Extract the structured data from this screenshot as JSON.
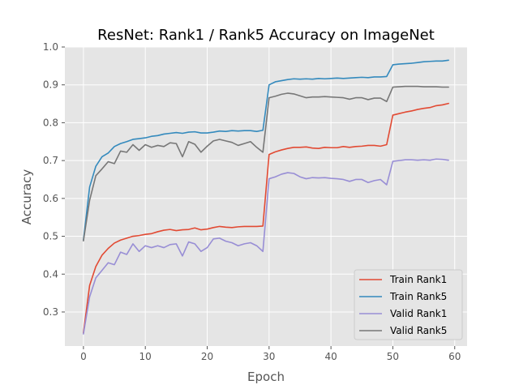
{
  "chart_data": {
    "type": "line",
    "title": "ResNet: Rank1 / Rank5 Accuracy on ImageNet",
    "xlabel": "Epoch",
    "ylabel": "Accuracy",
    "xlim": [
      -3,
      62
    ],
    "ylim": [
      0.21,
      1.0
    ],
    "xticks": [
      0,
      10,
      20,
      30,
      40,
      50,
      60
    ],
    "yticks": [
      0.3,
      0.4,
      0.5,
      0.6,
      0.7,
      0.8,
      0.9,
      1.0
    ],
    "xtick_labels": [
      "0",
      "10",
      "20",
      "30",
      "40",
      "50",
      "60"
    ],
    "ytick_labels": [
      "0.3",
      "0.4",
      "0.5",
      "0.6",
      "0.7",
      "0.8",
      "0.9",
      "1.0"
    ],
    "grid": true,
    "legend_position": "lower-right",
    "x": [
      0,
      1,
      2,
      3,
      4,
      5,
      6,
      7,
      8,
      9,
      10,
      11,
      12,
      13,
      14,
      15,
      16,
      17,
      18,
      19,
      20,
      21,
      22,
      23,
      24,
      25,
      26,
      27,
      28,
      29,
      30,
      31,
      32,
      33,
      34,
      35,
      36,
      37,
      38,
      39,
      40,
      41,
      42,
      43,
      44,
      45,
      46,
      47,
      48,
      49,
      50,
      51,
      52,
      53,
      54,
      55,
      56,
      57,
      58,
      59
    ],
    "series": [
      {
        "name": "Train Rank1",
        "color": "#e24a33",
        "values": [
          0.245,
          0.37,
          0.42,
          0.45,
          0.468,
          0.482,
          0.49,
          0.495,
          0.5,
          0.502,
          0.505,
          0.507,
          0.512,
          0.516,
          0.518,
          0.515,
          0.517,
          0.518,
          0.522,
          0.517,
          0.519,
          0.523,
          0.526,
          0.524,
          0.523,
          0.525,
          0.526,
          0.526,
          0.526,
          0.527,
          0.716,
          0.723,
          0.728,
          0.732,
          0.735,
          0.735,
          0.736,
          0.733,
          0.732,
          0.735,
          0.734,
          0.734,
          0.737,
          0.735,
          0.737,
          0.738,
          0.74,
          0.74,
          0.738,
          0.742,
          0.82,
          0.824,
          0.828,
          0.831,
          0.835,
          0.838,
          0.84,
          0.845,
          0.847,
          0.851
        ]
      },
      {
        "name": "Train Rank5",
        "color": "#348abd",
        "values": [
          0.49,
          0.63,
          0.685,
          0.71,
          0.72,
          0.737,
          0.745,
          0.75,
          0.756,
          0.758,
          0.76,
          0.764,
          0.766,
          0.77,
          0.772,
          0.774,
          0.772,
          0.775,
          0.776,
          0.773,
          0.773,
          0.775,
          0.778,
          0.777,
          0.779,
          0.778,
          0.779,
          0.779,
          0.777,
          0.78,
          0.9,
          0.908,
          0.911,
          0.914,
          0.916,
          0.915,
          0.916,
          0.915,
          0.917,
          0.916,
          0.917,
          0.918,
          0.917,
          0.918,
          0.919,
          0.92,
          0.919,
          0.921,
          0.921,
          0.922,
          0.953,
          0.955,
          0.956,
          0.957,
          0.959,
          0.961,
          0.962,
          0.963,
          0.963,
          0.965
        ]
      },
      {
        "name": "Valid Rank1",
        "color": "#988ed5",
        "values": [
          0.242,
          0.34,
          0.39,
          0.41,
          0.43,
          0.425,
          0.458,
          0.452,
          0.48,
          0.46,
          0.475,
          0.47,
          0.475,
          0.47,
          0.478,
          0.48,
          0.448,
          0.485,
          0.48,
          0.46,
          0.47,
          0.493,
          0.495,
          0.487,
          0.483,
          0.475,
          0.48,
          0.483,
          0.475,
          0.46,
          0.652,
          0.657,
          0.664,
          0.668,
          0.666,
          0.657,
          0.652,
          0.655,
          0.654,
          0.655,
          0.653,
          0.652,
          0.65,
          0.645,
          0.65,
          0.65,
          0.642,
          0.647,
          0.65,
          0.636,
          0.698,
          0.7,
          0.702,
          0.702,
          0.701,
          0.702,
          0.701,
          0.704,
          0.703,
          0.701
        ]
      },
      {
        "name": "Valid Rank5",
        "color": "#777777",
        "values": [
          0.488,
          0.595,
          0.66,
          0.678,
          0.697,
          0.692,
          0.725,
          0.722,
          0.742,
          0.727,
          0.742,
          0.735,
          0.74,
          0.737,
          0.747,
          0.745,
          0.71,
          0.75,
          0.743,
          0.722,
          0.738,
          0.752,
          0.756,
          0.752,
          0.748,
          0.74,
          0.745,
          0.75,
          0.735,
          0.722,
          0.866,
          0.87,
          0.875,
          0.878,
          0.876,
          0.871,
          0.866,
          0.868,
          0.868,
          0.869,
          0.868,
          0.867,
          0.866,
          0.862,
          0.866,
          0.866,
          0.861,
          0.865,
          0.865,
          0.856,
          0.894,
          0.895,
          0.896,
          0.896,
          0.896,
          0.895,
          0.895,
          0.895,
          0.894,
          0.894
        ]
      }
    ]
  }
}
